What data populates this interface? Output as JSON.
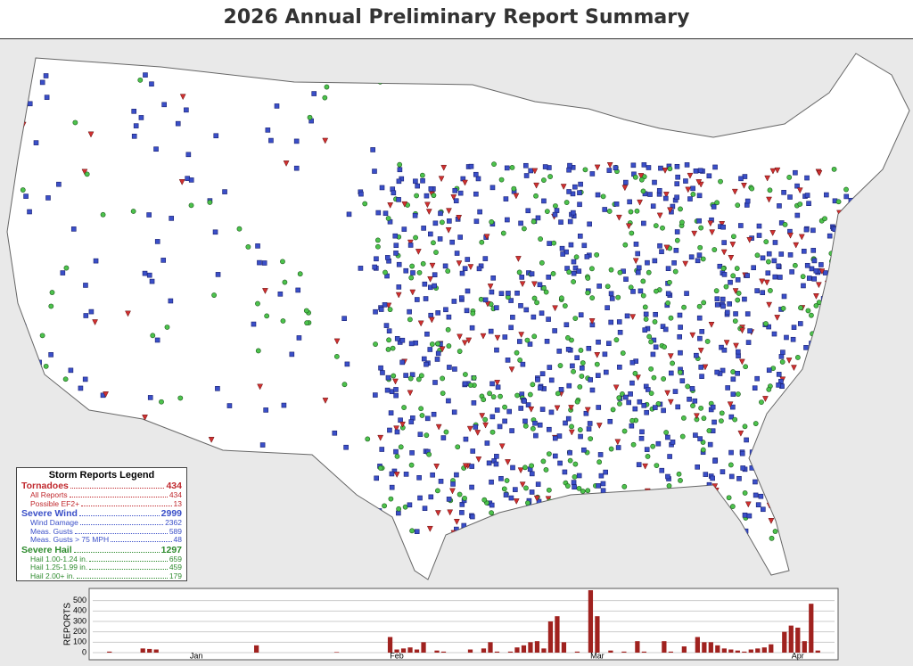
{
  "title": "2026 Annual Preliminary Report Summary",
  "legend": {
    "title": "Storm Reports Legend",
    "groups": [
      {
        "name": "Tornadoes",
        "total": 434,
        "color": "#c0282d",
        "items": [
          {
            "label": "All Reports",
            "count": 434
          },
          {
            "label": "Possible EF2+",
            "count": 13
          }
        ]
      },
      {
        "name": "Severe Wind",
        "total": 2999,
        "color": "#3a4fc8",
        "items": [
          {
            "label": "Wind Damage",
            "count": 2362
          },
          {
            "label": "Meas. Gusts",
            "count": 589
          },
          {
            "label": "Meas. Gusts > 75 MPH",
            "count": 48
          }
        ]
      },
      {
        "name": "Severe Hail",
        "total": 1297,
        "color": "#2e8b2e",
        "items": [
          {
            "label": "Hail 1.00-1.24 in.",
            "count": 659
          },
          {
            "label": "Hail 1.25-1.99 in.",
            "count": 459
          },
          {
            "label": "Hail 2.00+ in.",
            "count": 179
          }
        ]
      }
    ]
  },
  "chart_data": {
    "type": "bar",
    "ylabel": "REPORTS",
    "color": "#a0221f",
    "categories": [
      null,
      null,
      null,
      null,
      null,
      null,
      null,
      null,
      null,
      null,
      null,
      null,
      null,
      null,
      null,
      "Jan",
      null,
      null,
      null,
      null,
      null,
      null,
      null,
      null,
      null,
      null,
      null,
      null,
      null,
      null,
      null,
      null,
      null,
      null,
      null,
      null,
      null,
      null,
      null,
      null,
      null,
      null,
      null,
      null,
      null,
      "Feb",
      null,
      null,
      null,
      null,
      null,
      null,
      null,
      null,
      null,
      null,
      null,
      null,
      null,
      null,
      null,
      null,
      null,
      null,
      null,
      null,
      null,
      null,
      null,
      null,
      null,
      null,
      null,
      null,
      null,
      "Mar",
      null,
      null,
      null,
      null,
      null,
      null,
      null,
      null,
      null,
      null,
      null,
      null,
      null,
      null,
      null,
      null,
      null,
      null,
      null,
      null,
      null,
      null,
      null,
      null,
      null,
      null,
      null,
      null,
      null,
      "Apr",
      null,
      null,
      null,
      null,
      null
    ],
    "values": [
      0,
      0,
      10,
      0,
      0,
      0,
      0,
      40,
      35,
      30,
      0,
      0,
      0,
      0,
      0,
      0,
      0,
      0,
      0,
      0,
      0,
      0,
      0,
      0,
      70,
      0,
      0,
      0,
      0,
      0,
      0,
      0,
      0,
      0,
      0,
      0,
      5,
      0,
      0,
      0,
      0,
      0,
      0,
      0,
      150,
      30,
      40,
      50,
      30,
      100,
      0,
      20,
      10,
      0,
      0,
      0,
      30,
      0,
      40,
      100,
      10,
      0,
      10,
      50,
      70,
      100,
      110,
      40,
      300,
      350,
      100,
      0,
      10,
      0,
      600,
      350,
      0,
      20,
      0,
      10,
      0,
      110,
      10,
      0,
      0,
      110,
      10,
      0,
      60,
      0,
      150,
      100,
      100,
      70,
      40,
      30,
      20,
      10,
      30,
      40,
      50,
      80,
      0,
      200,
      260,
      240,
      110,
      470,
      20,
      0,
      0
    ],
    "ylim": [
      0,
      600
    ],
    "yticks": [
      0,
      100,
      200,
      300,
      400,
      500
    ],
    "grid": true
  }
}
